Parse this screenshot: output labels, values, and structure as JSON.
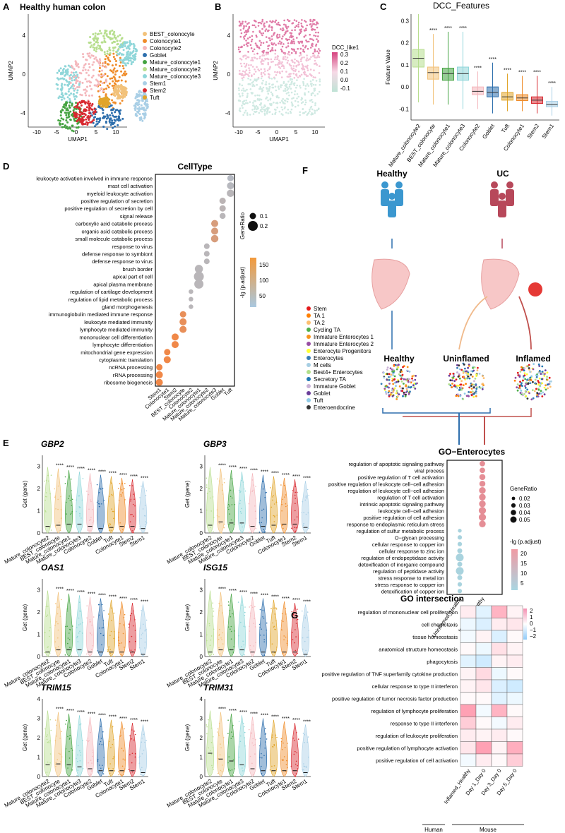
{
  "panels": {
    "A": {
      "letter": "A",
      "title": "Healthy human colon",
      "xlabel": "UMAP1",
      "ylabel": "UMAP2",
      "xticks": [
        "-10",
        "-5",
        "0",
        "5",
        "10"
      ],
      "yticks": [
        "4",
        "0",
        "-4"
      ],
      "legend": [
        {
          "name": "BEST_colonocyte",
          "color": "#f2c27b"
        },
        {
          "name": "Colonocyte1",
          "color": "#ef8c2a"
        },
        {
          "name": "Colonocyte2",
          "color": "#f4b7bc"
        },
        {
          "name": "Goblet",
          "color": "#2e6fad"
        },
        {
          "name": "Mature_colonocyte1",
          "color": "#44a341"
        },
        {
          "name": "Mature_colonocyte2",
          "color": "#b7de8e"
        },
        {
          "name": "Mature_colonocyte3",
          "color": "#8fd6d9"
        },
        {
          "name": "Stem1",
          "color": "#a9cfe6"
        },
        {
          "name": "Stem2",
          "color": "#d8282f"
        },
        {
          "name": "Tuft",
          "color": "#e1a52a"
        }
      ]
    },
    "B": {
      "letter": "B",
      "xlabel": "UMAP1",
      "ylabel": "UMAP2",
      "legend_title": "DCC_like1",
      "xticks": [
        "-10",
        "-5",
        "0",
        "5",
        "10"
      ],
      "yticks": [
        "4",
        "0",
        "-4"
      ],
      "colorbar": [
        "0.3",
        "0.2",
        "0.1",
        "0.0",
        "-0.1"
      ]
    },
    "C": {
      "letter": "C",
      "title": "DCC_Features",
      "ylabel": "Feature Value",
      "yticks": [
        "0.3",
        "0.2",
        "0.1",
        "0.0",
        "-0.1"
      ],
      "sig": "****"
    },
    "D": {
      "letter": "D",
      "title": "CellType",
      "size_title": "GeneRatio",
      "sizes": [
        "0.1",
        "0.2"
      ],
      "color_title": "-lg (p.adjust)",
      "color_ticks": [
        "150",
        "100",
        "50"
      ]
    },
    "E": {
      "letter": "E",
      "ylabel": "Get (gene)",
      "sig": "****"
    },
    "F": {
      "letter": "F",
      "healthy": "Healthy",
      "uc": "UC",
      "umap_titles": [
        "Healthy",
        "Uninflamed",
        "Inflamed"
      ],
      "go_title": "GO−Enterocytes",
      "size_title": "GeneRatio",
      "sizes": [
        "0.02",
        "0.03",
        "0.04",
        "0.05"
      ],
      "color_title": "-lg (p.adjust)",
      "color_ticks": [
        "20",
        "15",
        "10",
        "5"
      ],
      "xcats": [
        "Uninflamed_Healthy",
        "Inflamed_Healthy"
      ],
      "legend": [
        {
          "name": "Stem",
          "color": "#e41a1c"
        },
        {
          "name": "TA 1",
          "color": "#ff7f00"
        },
        {
          "name": "TA 2",
          "color": "#fdbf6f"
        },
        {
          "name": "Cycling TA",
          "color": "#4daf4a"
        },
        {
          "name": "Immature Enterocytes 1",
          "color": "#f7941d"
        },
        {
          "name": "Immature Enterocytes 2",
          "color": "#984ea3"
        },
        {
          "name": "Enterocyte Progenitors",
          "color": "#ffff33"
        },
        {
          "name": "Enterocytes",
          "color": "#377eb8"
        },
        {
          "name": "M cells",
          "color": "#a6cee3"
        },
        {
          "name": "Best4+ Enterocytes",
          "color": "#b2df8a"
        },
        {
          "name": "Secretory TA",
          "color": "#1f78b4"
        },
        {
          "name": "Immature Goblet",
          "color": "#cab2d6"
        },
        {
          "name": "Goblet",
          "color": "#6a3d9a"
        },
        {
          "name": "Tuft",
          "color": "#8ecae6"
        },
        {
          "name": "Enteroendocrine",
          "color": "#333333"
        }
      ]
    },
    "G": {
      "letter": "G",
      "title": "GO intersection",
      "colorbar": [
        "2",
        "1",
        "0",
        "−1",
        "−2"
      ],
      "xcats": [
        "Inflamed_Healthy",
        "Day 1_Day 0",
        "Day 3_Day 0",
        "Day 5_Day 0"
      ],
      "groups": [
        "Human",
        "Mouse"
      ]
    }
  },
  "chart_data": [
    {
      "type": "box",
      "panel": "C",
      "title": "DCC_Features",
      "ylabel": "Feature Value",
      "ylim": [
        -0.15,
        0.33
      ],
      "categories": [
        "Mature_colonocyte2",
        "BEST_colonocyte",
        "Mature_colonocyte1",
        "Mature_colonocyte3",
        "Colonocyte2",
        "Goblet",
        "Tuft",
        "Colonocyte1",
        "Stem2",
        "Stem1"
      ],
      "colors": [
        "#b7de8e",
        "#f2c27b",
        "#44a341",
        "#8fd6d9",
        "#f4b7bc",
        "#2e6fad",
        "#e1a52a",
        "#ef8c2a",
        "#d8282f",
        "#a9cfe6"
      ],
      "median": [
        0.13,
        0.065,
        0.06,
        0.06,
        -0.02,
        -0.025,
        -0.045,
        -0.05,
        -0.06,
        -0.08
      ],
      "q1": [
        0.09,
        0.035,
        0.03,
        0.03,
        -0.035,
        -0.045,
        -0.06,
        -0.062,
        -0.075,
        -0.09
      ],
      "q3": [
        0.17,
        0.09,
        0.085,
        0.09,
        0.0,
        0.0,
        -0.025,
        -0.035,
        -0.045,
        -0.065
      ],
      "whisker_low": [
        -0.07,
        -0.08,
        -0.08,
        -0.1,
        -0.1,
        -0.12,
        -0.11,
        -0.11,
        -0.12,
        -0.13
      ],
      "whisker_high": [
        0.33,
        0.24,
        0.25,
        0.25,
        0.07,
        0.11,
        0.06,
        0.05,
        0.05,
        0.0
      ]
    },
    {
      "type": "dot",
      "panel": "D",
      "terms": [
        "leukocyte activation involved in immune response",
        "mast cell activation",
        "myeloid leukocyte activation",
        "positive regulation of secretion",
        "positive regulation of secretion by cell",
        "signal release",
        "carboxylic acid catabolic process",
        "organic acid catabolic process",
        "small molecule catabolic process",
        "response to virus",
        "defense response to symbiont",
        "defense response to virus",
        "brush border",
        "apical part of cell",
        "apical plasma membrane",
        "regulation of cartilage development",
        "regulation of lipid metabolic process",
        "gland morphogenesis",
        "immunoglobulin mediated immune response",
        "leukocyte mediated immunity",
        "lymphocyte mediated immunity",
        "mononuclear cell differentiation",
        "lymphocyte differentiation",
        "mitochondrial gene expression",
        "cytoplasmic translation",
        "ncRNA processing",
        "rRNA processing",
        "ribosome biogenesis"
      ],
      "celltypes": [
        "Stem1",
        "Colonocyte1",
        "Stem2",
        "BEST_colonocyte",
        "Colonocyte2",
        "Mature_colonocyte1",
        "Mature_colonocyte2",
        "Mature_colonocyte3",
        "Goblet",
        "Tuft"
      ],
      "points": [
        [
          9,
          0,
          0.1,
          30
        ],
        [
          9,
          1,
          0.12,
          35
        ],
        [
          9,
          2,
          0.13,
          40
        ],
        [
          8,
          3,
          0.1,
          45
        ],
        [
          8,
          4,
          0.1,
          45
        ],
        [
          8,
          5,
          0.09,
          40
        ],
        [
          7,
          6,
          0.12,
          110
        ],
        [
          7,
          7,
          0.12,
          110
        ],
        [
          7,
          8,
          0.13,
          110
        ],
        [
          6,
          9,
          0.08,
          40
        ],
        [
          6,
          10,
          0.08,
          40
        ],
        [
          6,
          11,
          0.08,
          40
        ],
        [
          5,
          12,
          0.15,
          40
        ],
        [
          5,
          13,
          0.2,
          40
        ],
        [
          5,
          14,
          0.18,
          40
        ],
        [
          4,
          15,
          0.05,
          40
        ],
        [
          4,
          16,
          0.05,
          40
        ],
        [
          4,
          17,
          0.05,
          40
        ],
        [
          3,
          18,
          0.1,
          150
        ],
        [
          3,
          19,
          0.12,
          150
        ],
        [
          3,
          20,
          0.12,
          150
        ],
        [
          2,
          21,
          0.12,
          170
        ],
        [
          2,
          22,
          0.12,
          170
        ],
        [
          1,
          23,
          0.1,
          170
        ],
        [
          1,
          24,
          0.12,
          170
        ],
        [
          0,
          25,
          0.1,
          170
        ],
        [
          0,
          26,
          0.12,
          170
        ],
        [
          0,
          27,
          0.12,
          170
        ]
      ]
    },
    {
      "type": "violin",
      "panel": "E",
      "categories": [
        "Mature_colonocyte2",
        "BEST_colonocyte",
        "Mature_colonocyte1",
        "Mature_colonocyte3",
        "Colonocyte2",
        "Goblet",
        "Tuft",
        "Colonocyte1",
        "Stem2",
        "Stem1"
      ],
      "genes": [
        {
          "name": "GBP2",
          "ylim": [
            0,
            3.5
          ],
          "yticks": [
            "3",
            "2",
            "1",
            "0"
          ],
          "medians": [
            0.3,
            0.35,
            0.4,
            0.4,
            0.3,
            0.2,
            0.25,
            0.3,
            0.3,
            0.2
          ]
        },
        {
          "name": "GBP3",
          "ylim": [
            0,
            3.5
          ],
          "yticks": [
            "3",
            "2",
            "1",
            "0"
          ],
          "medians": [
            0.35,
            0.5,
            0.45,
            0.45,
            0.3,
            0.3,
            0.35,
            0.4,
            0.4,
            0.25
          ]
        },
        {
          "name": "OAS1",
          "ylim": [
            0,
            3.5
          ],
          "yticks": [
            "3",
            "2",
            "1",
            "0"
          ],
          "medians": [
            0.2,
            0.3,
            0.3,
            0.3,
            0.2,
            0.2,
            0.2,
            0.2,
            0.2,
            0.1
          ]
        },
        {
          "name": "ISG15",
          "ylim": [
            0,
            3.5
          ],
          "yticks": [
            "3",
            "2",
            "1",
            "0"
          ],
          "medians": [
            0.2,
            0.3,
            0.3,
            0.3,
            0.2,
            0.2,
            0.2,
            0.2,
            0.2,
            0.1
          ]
        },
        {
          "name": "TRIM15",
          "ylim": [
            0,
            4
          ],
          "yticks": [
            "4",
            "3",
            "2",
            "1",
            "0"
          ],
          "medians": [
            0.6,
            0.65,
            0.6,
            0.5,
            0.4,
            0.3,
            0.3,
            0.3,
            0.3,
            0.2
          ]
        },
        {
          "name": "TRIM31",
          "ylim": [
            0,
            4
          ],
          "yticks": [
            "4",
            "3",
            "2",
            "1",
            "0"
          ],
          "medians": [
            1.2,
            0.9,
            0.8,
            0.6,
            0.4,
            0.3,
            0.3,
            0.3,
            0.3,
            0.2
          ]
        }
      ]
    },
    {
      "type": "dot",
      "panel": "F",
      "terms": [
        "regulation of apoptotic signaling pathway",
        "viral process",
        "positive regulation of T cell activation",
        "positive regulation of leukocyte cell−cell adhesion",
        "regulation of leukocyte cell−cell adhesion",
        "regulation of T cell activation",
        "intrinsic apoptotic signaling pathway",
        "leukocyte cell−cell adhesion",
        "positive regulation of cell adhesion",
        "response to endoplasmic reticulum stress",
        "regulation of sulfur metabolic process",
        "O−glycan processing",
        "cellular response to copper ion",
        "cellular response to zinc ion",
        "regulation of endopeptidase activity",
        "detoxification of inorganic compound",
        "regulation of peptidase activity",
        "stress response to metal ion",
        "stress response to copper ion",
        "detoxification of copper ion"
      ],
      "points": [
        [
          1,
          0,
          0.03,
          18
        ],
        [
          1,
          1,
          0.03,
          18
        ],
        [
          1,
          2,
          0.035,
          19
        ],
        [
          1,
          3,
          0.035,
          19
        ],
        [
          1,
          4,
          0.04,
          20
        ],
        [
          1,
          5,
          0.04,
          20
        ],
        [
          1,
          6,
          0.04,
          20
        ],
        [
          1,
          7,
          0.045,
          21
        ],
        [
          1,
          8,
          0.045,
          21
        ],
        [
          1,
          9,
          0.04,
          22
        ],
        [
          0,
          10,
          0.015,
          6
        ],
        [
          0,
          11,
          0.02,
          6
        ],
        [
          0,
          12,
          0.02,
          6
        ],
        [
          0,
          13,
          0.025,
          6
        ],
        [
          0,
          14,
          0.05,
          7
        ],
        [
          0,
          15,
          0.025,
          6
        ],
        [
          0,
          16,
          0.05,
          7
        ],
        [
          0,
          17,
          0.025,
          6
        ],
        [
          0,
          18,
          0.02,
          6
        ],
        [
          0,
          19,
          0.02,
          6
        ]
      ]
    },
    {
      "type": "heatmap",
      "panel": "G",
      "rows": [
        "regulation of mononuclear cell proliferation",
        "cell chemotaxis",
        "tissue homeostasis",
        "anatomical structure homeostasis",
        "phagocytosis",
        "positive regulation of TNF superfamily cytokine production",
        "cellular response to type II interferon",
        "positive regulation of tumor necrosis factor production",
        "regulation of lymphocyte proliferation",
        "response to type II interferon",
        "regulation of leukocyte proliferation",
        "positive regulation of lymphocyte activation",
        "positive regulation of cell activation"
      ],
      "columns": [
        "Inflamed_Healthy",
        "Day 1_Day 0",
        "Day 3_Day 0",
        "Day 5_Day 0"
      ],
      "values": [
        [
          0.3,
          -0.5,
          1.2,
          0.2
        ],
        [
          -0.3,
          -0.6,
          0.3,
          0.4
        ],
        [
          -0.2,
          0.2,
          -0.6,
          0.1
        ],
        [
          0.1,
          -0.3,
          0.5,
          0.2
        ],
        [
          -0.5,
          -0.8,
          0.2,
          0.3
        ],
        [
          0.2,
          0.6,
          -0.3,
          0.1
        ],
        [
          0.2,
          0.4,
          -0.6,
          -0.8
        ],
        [
          0.1,
          0.1,
          -0.5,
          -0.3
        ],
        [
          1.5,
          -0.2,
          1.2,
          0.1
        ],
        [
          0.8,
          0.1,
          -0.2,
          0.3
        ],
        [
          0.3,
          0.2,
          0.3,
          0.1
        ],
        [
          0.4,
          1.5,
          0.2,
          1.3
        ],
        [
          -0.2,
          0.3,
          0.1,
          0.8
        ]
      ],
      "limits": [
        -2,
        2
      ]
    }
  ]
}
